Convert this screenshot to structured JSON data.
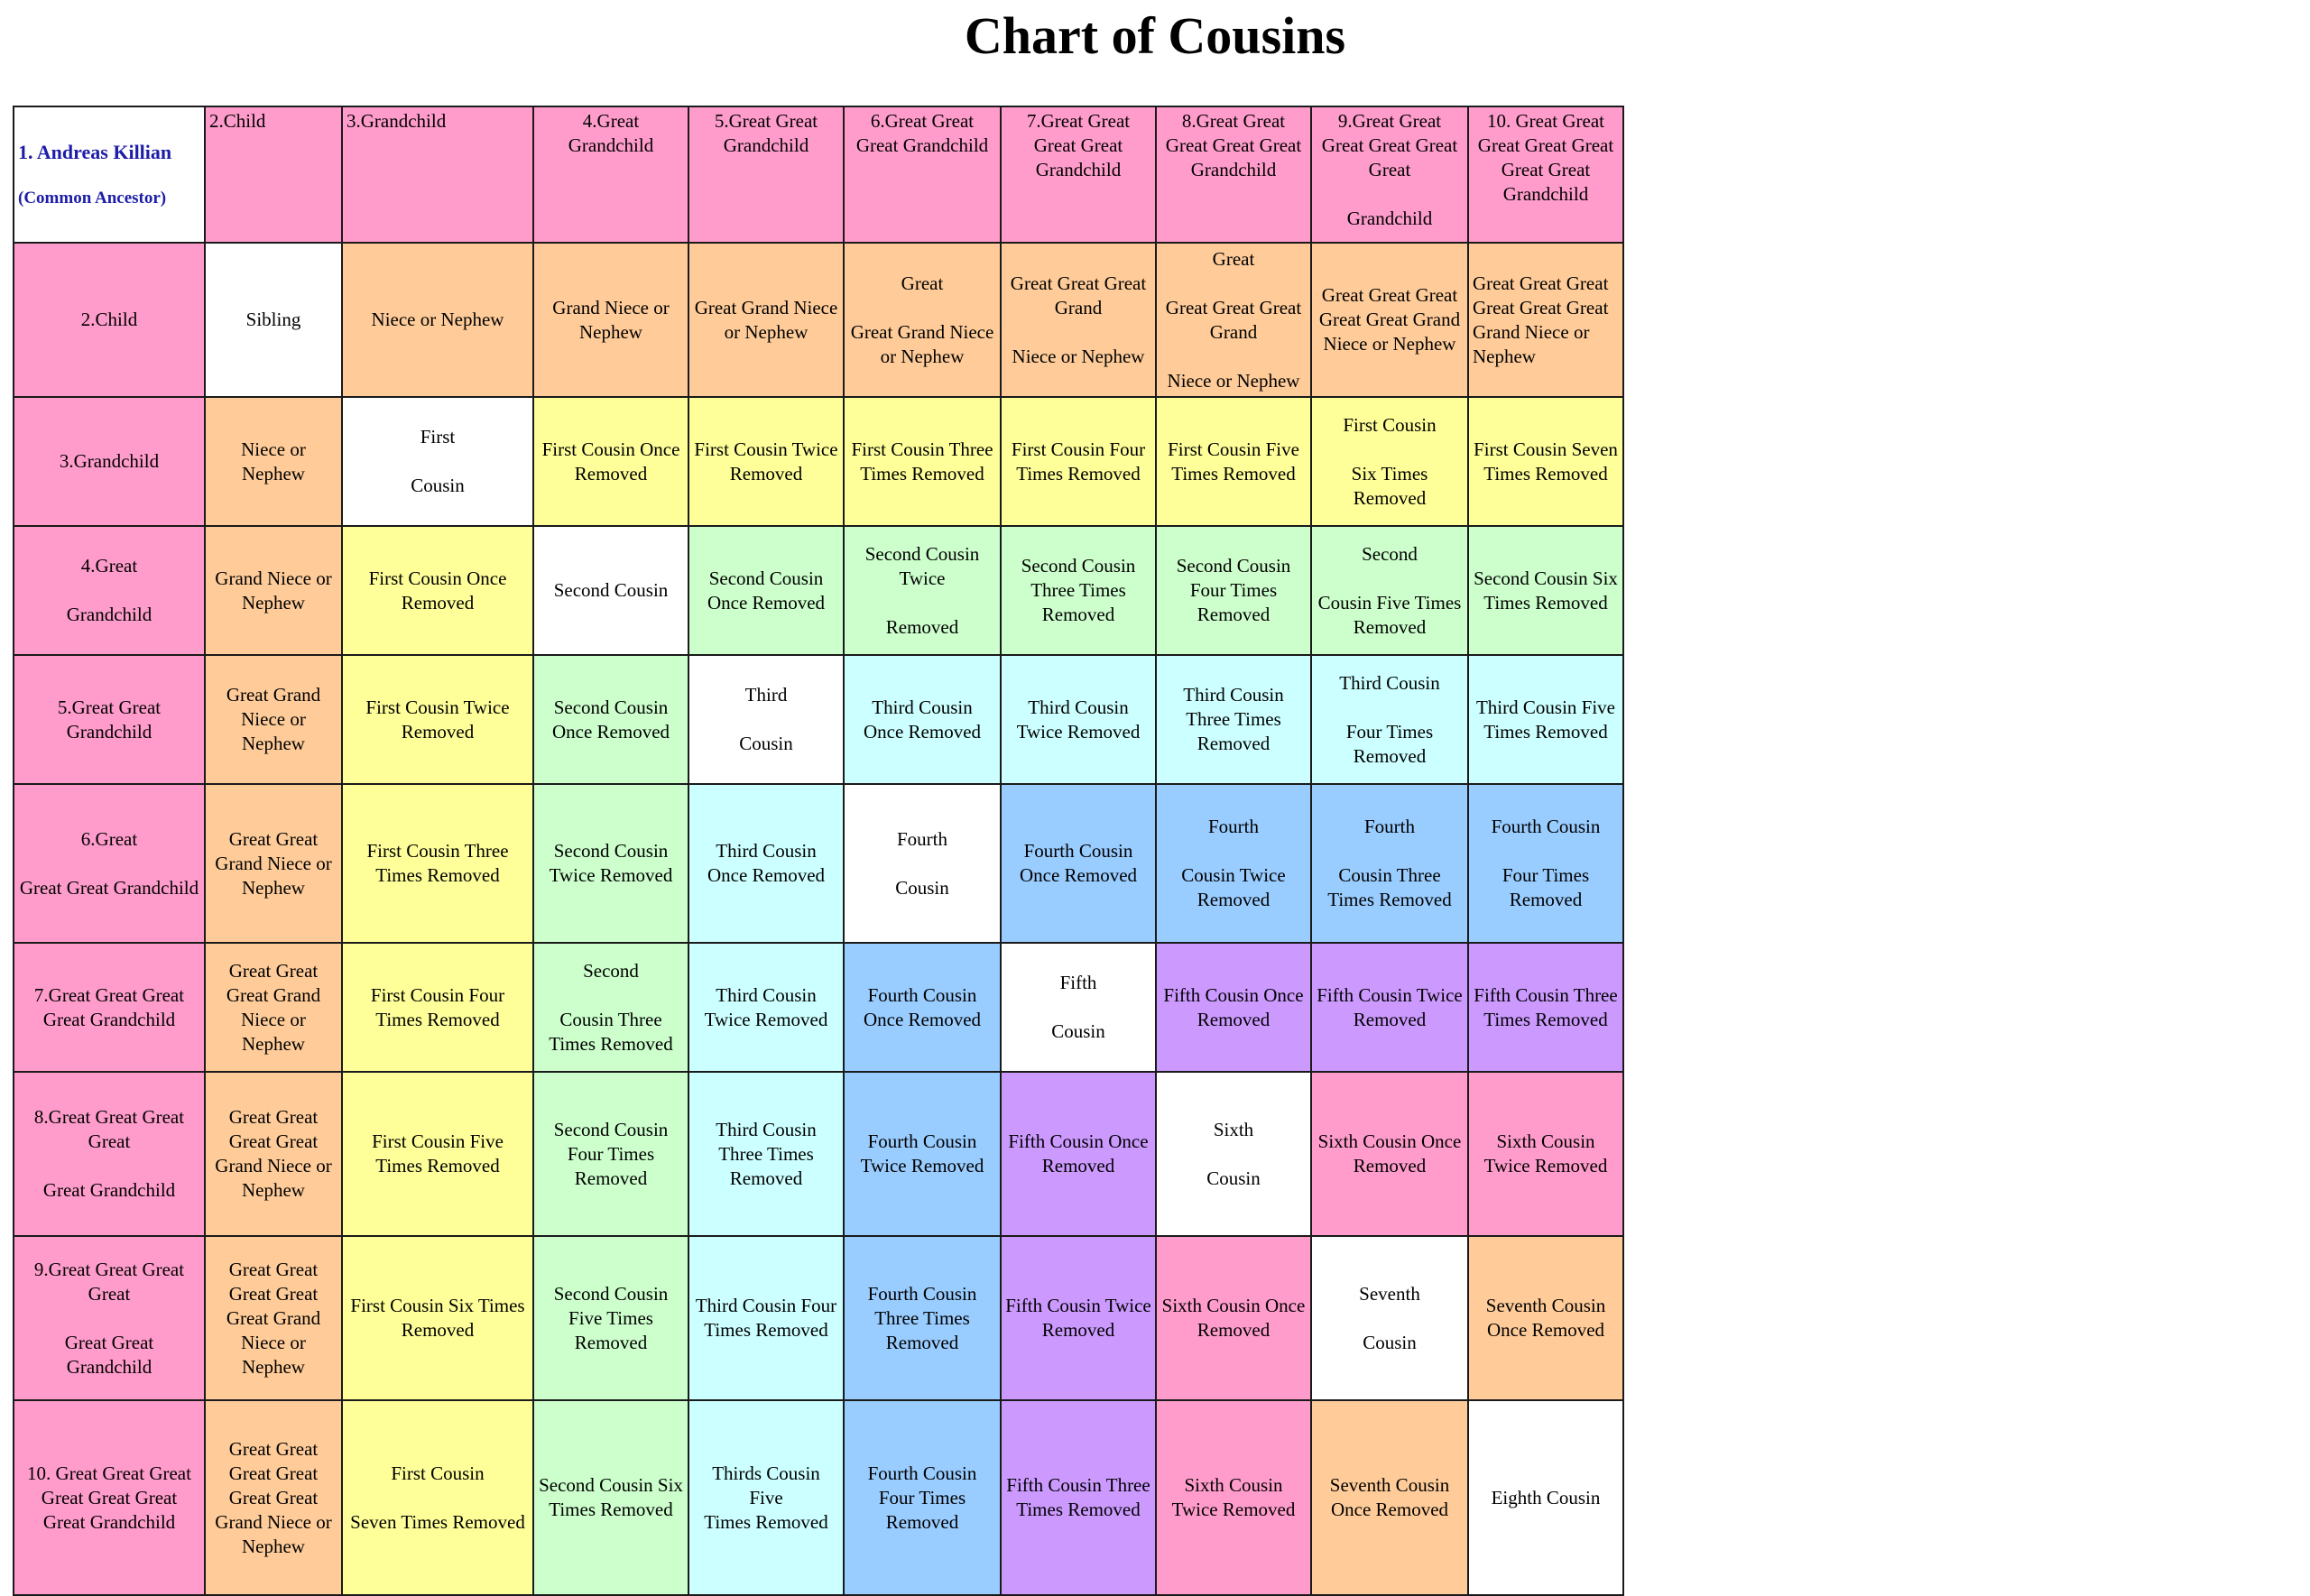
{
  "title": "Chart of Cousins",
  "colors": {
    "pink": "#ff9ccb",
    "peach": "#ffcc99",
    "yellow": "#ffff99",
    "green": "#ccffcc",
    "cyan": "#ccffff",
    "blue": "#99ccff",
    "purple": "#cc99ff",
    "white": "#ffffff",
    "ancestor_text": "#1d1da8"
  },
  "ancestor": {
    "name": "1. Andreas Killian",
    "note": "(Common Ancestor)"
  },
  "column_headers": [
    "2.Child",
    "3.Grandchild",
    "4.Great Grandchild",
    "5.Great Great\nGrandchild",
    "6.Great Great\nGreat Grandchild",
    "7.Great Great\nGreat Great\nGrandchild",
    "8.Great Great\nGreat Great Great\nGrandchild",
    "9.Great Great\nGreat Great Great\nGreat\n\nGrandchild",
    "10. Great Great\nGreat Great Great\nGreat Great\nGrandchild"
  ],
  "rows": [
    {
      "label": "2.Child",
      "cells": [
        {
          "text": "Sibling",
          "color": "white"
        },
        {
          "text": "Niece or Nephew",
          "color": "peach"
        },
        {
          "text": "Grand Niece or\nNephew",
          "color": "peach"
        },
        {
          "text": "Great Grand Niece\nor Nephew",
          "color": "peach"
        },
        {
          "text": "Great\n\nGreat Grand Niece\nor Nephew",
          "color": "peach"
        },
        {
          "text": "Great Great Great\nGrand\n\nNiece or Nephew",
          "color": "peach"
        },
        {
          "text": "Great\n\nGreat Great Great\nGrand\n\nNiece or Nephew",
          "color": "peach"
        },
        {
          "text": "Great Great Great\nGreat Great Grand\nNiece or Nephew",
          "color": "peach"
        },
        {
          "text": "Great Great Great\nGreat Great Great\nGrand Niece or\nNephew",
          "color": "peach",
          "align": "left"
        }
      ]
    },
    {
      "label": "3.Grandchild",
      "cells": [
        {
          "text": "Niece or\nNephew",
          "color": "peach"
        },
        {
          "text": "First\n\nCousin",
          "color": "white"
        },
        {
          "text": "First Cousin Once\nRemoved",
          "color": "yellow"
        },
        {
          "text": "First Cousin Twice\nRemoved",
          "color": "yellow"
        },
        {
          "text": "First Cousin Three\nTimes Removed",
          "color": "yellow"
        },
        {
          "text": "First Cousin Four\nTimes Removed",
          "color": "yellow"
        },
        {
          "text": "First Cousin Five\nTimes Removed",
          "color": "yellow"
        },
        {
          "text": "First Cousin\n\nSix Times\nRemoved",
          "color": "yellow"
        },
        {
          "text": "First Cousin Seven\nTimes Removed",
          "color": "yellow"
        }
      ]
    },
    {
      "label": "4.Great\n\nGrandchild",
      "cells": [
        {
          "text": "Grand Niece or\nNephew",
          "color": "peach"
        },
        {
          "text": "First Cousin Once\nRemoved",
          "color": "yellow"
        },
        {
          "text": "Second Cousin",
          "color": "white"
        },
        {
          "text": "Second Cousin\nOnce Removed",
          "color": "green"
        },
        {
          "text": "Second Cousin\nTwice\n\nRemoved",
          "color": "green"
        },
        {
          "text": "Second Cousin\nThree Times\nRemoved",
          "color": "green"
        },
        {
          "text": "Second Cousin\nFour Times\nRemoved",
          "color": "green"
        },
        {
          "text": "Second\n\nCousin Five Times\nRemoved",
          "color": "green"
        },
        {
          "text": "Second Cousin Six\nTimes Removed",
          "color": "green"
        }
      ]
    },
    {
      "label": "5.Great Great\nGrandchild",
      "cells": [
        {
          "text": "Great Grand\nNiece or\nNephew",
          "color": "peach"
        },
        {
          "text": "First Cousin Twice\nRemoved",
          "color": "yellow"
        },
        {
          "text": "Second Cousin\nOnce Removed",
          "color": "green"
        },
        {
          "text": "Third\n\nCousin",
          "color": "white"
        },
        {
          "text": "Third  Cousin\nOnce Removed",
          "color": "cyan"
        },
        {
          "text": "Third  Cousin\nTwice Removed",
          "color": "cyan"
        },
        {
          "text": "Third  Cousin\nThree Times\nRemoved",
          "color": "cyan"
        },
        {
          "text": "Third Cousin\n\nFour Times\nRemoved",
          "color": "cyan"
        },
        {
          "text": "Third Cousin Five\nTimes Removed",
          "color": "cyan"
        }
      ]
    },
    {
      "label": "6.Great\n\nGreat Great Grandchild",
      "cells": [
        {
          "text": "Great Great\nGrand Niece or\nNephew",
          "color": "peach"
        },
        {
          "text": "First Cousin Three\nTimes Removed",
          "color": "yellow"
        },
        {
          "text": "Second Cousin\nTwice Removed",
          "color": "green"
        },
        {
          "text": "Third  Cousin\nOnce Removed",
          "color": "cyan"
        },
        {
          "text": "Fourth\n\nCousin",
          "color": "white"
        },
        {
          "text": "Fourth Cousin\nOnce Removed",
          "color": "blue"
        },
        {
          "text": "Fourth\n\nCousin Twice\nRemoved",
          "color": "blue"
        },
        {
          "text": "Fourth\n\nCousin Three\nTimes Removed",
          "color": "blue"
        },
        {
          "text": "Fourth Cousin\n\nFour Times\nRemoved",
          "color": "blue"
        }
      ]
    },
    {
      "label": "7.Great Great Great\nGreat Grandchild",
      "cells": [
        {
          "text": "Great Great\nGreat Grand\nNiece or\nNephew",
          "color": "peach"
        },
        {
          "text": "First Cousin Four\nTimes Removed",
          "color": "yellow"
        },
        {
          "text": "Second\n\nCousin Three\nTimes Removed",
          "color": "green"
        },
        {
          "text": "Third  Cousin\nTwice Removed",
          "color": "cyan"
        },
        {
          "text": "Fourth Cousin\nOnce Removed",
          "color": "blue"
        },
        {
          "text": "Fifth\n\nCousin",
          "color": "white"
        },
        {
          "text": "Fifth Cousin Once\nRemoved",
          "color": "purple"
        },
        {
          "text": "Fifth Cousin Twice\nRemoved",
          "color": "purple"
        },
        {
          "text": "Fifth Cousin Three\nTimes Removed",
          "color": "purple"
        }
      ]
    },
    {
      "label": "8.Great Great Great\nGreat\n\nGreat Grandchild",
      "cells": [
        {
          "text": "Great Great\nGreat  Great\nGrand Niece or\nNephew",
          "color": "peach"
        },
        {
          "text": "First Cousin Five\nTimes Removed",
          "color": "yellow"
        },
        {
          "text": "Second Cousin\nFour Times\nRemoved",
          "color": "green"
        },
        {
          "text": "Third Cousin\nThree Times\nRemoved",
          "color": "cyan"
        },
        {
          "text": "Fourth Cousin\nTwice Removed",
          "color": "blue"
        },
        {
          "text": "Fifth Cousin Once\nRemoved",
          "color": "purple"
        },
        {
          "text": "Sixth\n\nCousin",
          "color": "white"
        },
        {
          "text": "Sixth Cousin Once\nRemoved",
          "color": "pink"
        },
        {
          "text": "Sixth Cousin\nTwice Removed",
          "color": "pink"
        }
      ]
    },
    {
      "label": "9.Great Great Great\nGreat\n\nGreat Great\nGrandchild",
      "cells": [
        {
          "text": "Great Great\nGreat Great\nGreat Grand\nNiece or\nNephew",
          "color": "peach"
        },
        {
          "text": "First Cousin Six Times\nRemoved",
          "color": "yellow"
        },
        {
          "text": "Second Cousin\nFive Times\nRemoved",
          "color": "green"
        },
        {
          "text": "Third Cousin Four\nTimes Removed",
          "color": "cyan"
        },
        {
          "text": "Fourth Cousin\nThree Times\nRemoved",
          "color": "blue"
        },
        {
          "text": "Fifth Cousin Twice\nRemoved",
          "color": "purple"
        },
        {
          "text": "Sixth Cousin Once\nRemoved",
          "color": "pink"
        },
        {
          "text": "Seventh\n\nCousin",
          "color": "white"
        },
        {
          "text": "Seventh Cousin\nOnce Removed",
          "color": "peach"
        }
      ]
    },
    {
      "label": "10. Great Great Great\nGreat Great Great\nGreat Grandchild",
      "cells": [
        {
          "text": "Great Great\nGreat Great\nGreat Great\nGrand Niece or\nNephew",
          "color": "peach"
        },
        {
          "text": "First Cousin\n\nSeven Times Removed",
          "color": "yellow"
        },
        {
          "text": "Second Cousin Six\nTimes Removed",
          "color": "green"
        },
        {
          "text": "Thirds Cousin Five\nTimes Removed",
          "color": "cyan"
        },
        {
          "text": "Fourth Cousin\nFour Times\nRemoved",
          "color": "blue"
        },
        {
          "text": "Fifth Cousin Three\nTimes Removed",
          "color": "purple"
        },
        {
          "text": "Sixth Cousin\nTwice Removed",
          "color": "pink"
        },
        {
          "text": "Seventh Cousin\nOnce Removed",
          "color": "peach"
        },
        {
          "text": "Eighth Cousin",
          "color": "white"
        }
      ]
    }
  ]
}
